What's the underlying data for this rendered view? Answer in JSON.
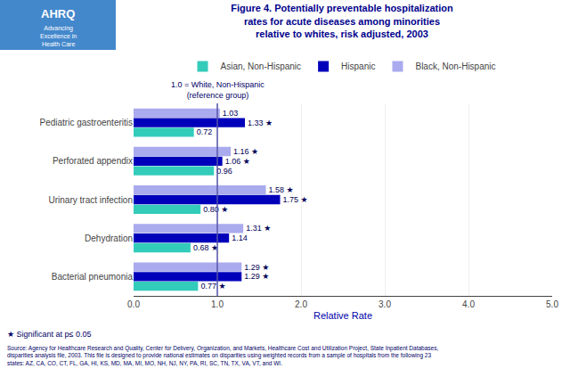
{
  "chart_data": {
    "type": "bar",
    "orientation": "horizontal",
    "title": "Figure 4. Potentially preventable hospitalization\nrates for acute diseases among minorities\nrelative to whites, risk adjusted, 2003",
    "categories": [
      "Bacterial pneumonia",
      "Dehydration",
      "Urinary tract infection",
      "Perforated appendix",
      "Pediatric gastroenteritis"
    ],
    "series": [
      {
        "name": "Asian, Non-Hispanic",
        "color": "#33CCBB",
        "values": [
          0.77,
          0.68,
          0.8,
          0.96,
          0.72
        ],
        "value_labels": [
          "0.77 ★",
          "0.68 ★",
          "0.80 ★",
          "0.96",
          "0.72"
        ]
      },
      {
        "name": "Hispanic",
        "color": "#0000BB",
        "values": [
          1.29,
          1.14,
          1.75,
          1.06,
          1.33
        ],
        "value_labels": [
          "1.29 ★",
          "1.14",
          "1.75 ★",
          "1.06 ★",
          "1.33 ★"
        ]
      },
      {
        "name": "Black, Non-Hispanic",
        "color": "#AAAAEE",
        "values": [
          1.29,
          1.31,
          1.58,
          1.16,
          1.03
        ],
        "value_labels": [
          "1.29 ★",
          "1.31 ★",
          "1.58 ★",
          "1.16 ★",
          "1.03"
        ]
      }
    ],
    "xlabel": "Relative Rate",
    "xlim": [
      0,
      5.0
    ],
    "xticks": [
      {
        "value": 0.0,
        "label": "0.0"
      },
      {
        "value": 1.0,
        "label": "1.0"
      },
      {
        "value": 2.0,
        "label": "2.0"
      },
      {
        "value": 3.0,
        "label": "3.0"
      },
      {
        "value": 4.0,
        "label": "4.0"
      },
      {
        "value": 5.0,
        "label": "5.0"
      }
    ],
    "grid": true,
    "legend": "top",
    "data_labels": true,
    "annotations": [
      {
        "text": "1.0 = White, Non-Hispanic\n(reference group)",
        "x": 1.0
      }
    ],
    "footnote": "★ Significant at p≤ 0.05",
    "source": "Source: Agency for Healthcare Research and Quality, Center for Delivery, Organization, and Markets, Healthcare Cost and Utilization Project, State Inpatient Databases,\ndisparities analysis file, 2003. This file is designed to provide national estimates on disparities using weighted records from a sample of hospitals from the following 23\nstates: AZ, CA, CO, CT, FL, GA, HI, KS, MD, MA, MI, MO, NH, NJ, NY, PA, RI, SC, TN, TX, VA, VT, and WI.",
    "logo": [
      "AHRQ",
      "Advancing\nExcellence in\nHealth Care"
    ]
  }
}
